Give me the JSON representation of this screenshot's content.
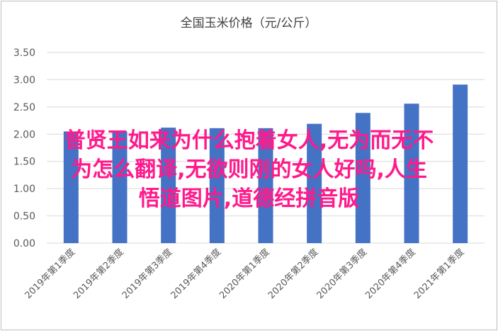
{
  "chart_data": {
    "type": "bar",
    "title": "全国玉米价格（元/公斤）",
    "categories": [
      "2019年第1季度",
      "2019年第2季度",
      "2019年第3季度",
      "2019年第4季度",
      "2020年第1季度",
      "2020年第2季度",
      "2020年第3季度",
      "2020年第4季度",
      "2021年第1季度"
    ],
    "values": [
      2.05,
      2.05,
      2.12,
      2.11,
      2.11,
      2.19,
      2.39,
      2.56,
      2.91
    ],
    "ylim": [
      0,
      3.5
    ],
    "yticks": [
      "0.00",
      "0.50",
      "1.00",
      "1.50",
      "2.00",
      "2.50",
      "3.00",
      "3.50"
    ],
    "xlabel": "",
    "ylabel": "",
    "grid": true,
    "bar_color": "#4472c4",
    "grid_color": "#d9d9d9"
  },
  "overlay": {
    "lines": [
      "普贤王如来为什么抱着女人,无为而无不",
      "为怎么翻译,无欲则刚的女人好吗,人生",
      "悟道图片,道德经拼音版"
    ],
    "color": "#ff1a8c"
  }
}
